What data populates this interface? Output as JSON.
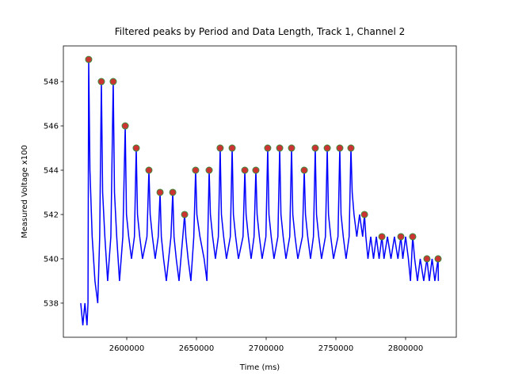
{
  "chart_data": {
    "type": "line",
    "title": "Filtered peaks by Period and Data Length, Track 1, Channel 2",
    "xlabel": "Time (ms)",
    "ylabel": "Measured Voltage x100",
    "xlim": [
      2554545,
      2836364
    ],
    "xticks": [
      2600000,
      2650000,
      2700000,
      2750000,
      2800000
    ],
    "ylim": [
      536.46,
      549.61
    ],
    "yticks": [
      538,
      540,
      542,
      544,
      546,
      548
    ],
    "grid": false,
    "series": [
      {
        "type": "line",
        "color": "#0000ff",
        "x": [
          2567000,
          2568500,
          2570000,
          2571500,
          2572200,
          2572700,
          2573600,
          2575200,
          2577200,
          2579200,
          2580600,
          2581800,
          2582700,
          2584300,
          2586300,
          2588600,
          2590300,
          2591200,
          2592800,
          2594800,
          2597200,
          2598900,
          2599800,
          2601400,
          2603400,
          2605500,
          2606800,
          2607700,
          2609300,
          2611300,
          2614500,
          2615900,
          2616800,
          2618400,
          2620400,
          2622600,
          2623900,
          2624800,
          2626400,
          2628400,
          2631700,
          2633000,
          2633900,
          2635500,
          2637500,
          2640200,
          2641500,
          2642400,
          2644000,
          2646000,
          2648100,
          2649400,
          2650300,
          2652500,
          2655500,
          2657500,
          2659100,
          2660000,
          2661600,
          2663600,
          2665700,
          2667000,
          2667900,
          2669500,
          2671500,
          2674300,
          2675600,
          2676500,
          2678100,
          2680100,
          2683400,
          2684700,
          2685600,
          2687200,
          2689200,
          2691300,
          2692600,
          2693500,
          2695100,
          2697100,
          2699800,
          2701100,
          2702000,
          2703600,
          2705600,
          2708400,
          2709700,
          2710600,
          2712200,
          2714200,
          2716900,
          2718200,
          2719100,
          2720700,
          2722700,
          2726000,
          2727300,
          2728200,
          2729800,
          2731800,
          2733900,
          2735200,
          2736100,
          2737700,
          2739700,
          2742500,
          2743800,
          2744700,
          2746300,
          2748300,
          2751500,
          2752800,
          2753700,
          2755300,
          2757300,
          2759500,
          2760800,
          2761700,
          2763000,
          2765000,
          2767000,
          2769200,
          2770500,
          2771500,
          2773000,
          2775000,
          2777000,
          2779000,
          2781000,
          2783000,
          2784500,
          2787000,
          2789500,
          2792000,
          2794500,
          2796600,
          2798000,
          2800000,
          2802000,
          2803500,
          2805100,
          2806500,
          2808500,
          2810500,
          2813000,
          2815300,
          2817000,
          2819000,
          2821000,
          2823300,
          2823500
        ],
        "values": [
          538,
          537,
          538,
          537,
          538,
          549,
          544,
          541,
          539,
          538,
          541,
          548,
          543,
          541,
          539,
          541,
          548,
          543,
          541,
          539,
          541,
          546,
          542,
          541,
          540,
          541,
          545,
          542,
          541,
          540,
          541,
          544,
          542,
          541,
          540,
          541,
          543,
          541,
          540,
          539,
          541,
          543,
          541,
          540,
          539,
          541,
          542,
          541,
          540,
          539,
          541,
          544,
          542,
          541,
          540,
          539,
          544,
          542,
          541,
          540,
          541,
          545,
          542,
          541,
          540,
          541,
          545,
          542,
          541,
          540,
          541,
          544,
          542,
          541,
          540,
          541,
          544,
          542,
          541,
          540,
          541,
          545,
          542,
          541,
          540,
          541,
          545,
          542,
          541,
          540,
          541,
          545,
          542,
          541,
          540,
          541,
          544,
          542,
          541,
          540,
          541,
          545,
          542,
          541,
          540,
          541,
          545,
          542,
          541,
          540,
          541,
          545,
          542,
          541,
          540,
          541,
          545,
          543,
          542,
          541,
          542,
          541,
          542,
          541,
          540,
          541,
          540,
          541,
          540,
          541,
          540,
          541,
          540,
          541,
          540,
          541,
          540,
          541,
          540,
          539,
          541,
          540,
          539,
          540,
          539,
          540,
          539,
          540,
          539,
          540,
          539
        ]
      },
      {
        "type": "scatter",
        "color": "#cc3333",
        "edgecolor": "#3d8b3d",
        "x": [
          2572700,
          2581800,
          2590300,
          2598900,
          2606800,
          2615900,
          2623900,
          2633000,
          2641500,
          2649400,
          2659100,
          2667000,
          2675600,
          2684700,
          2692600,
          2701100,
          2709700,
          2718200,
          2727300,
          2735200,
          2743800,
          2752800,
          2760800,
          2770500,
          2783000,
          2796600,
          2805100,
          2815300,
          2823300
        ],
        "values": [
          549,
          548,
          548,
          546,
          545,
          544,
          543,
          543,
          542,
          544,
          544,
          545,
          545,
          544,
          544,
          545,
          545,
          545,
          544,
          545,
          545,
          545,
          545,
          542,
          541,
          541,
          541,
          540,
          540
        ]
      }
    ]
  }
}
